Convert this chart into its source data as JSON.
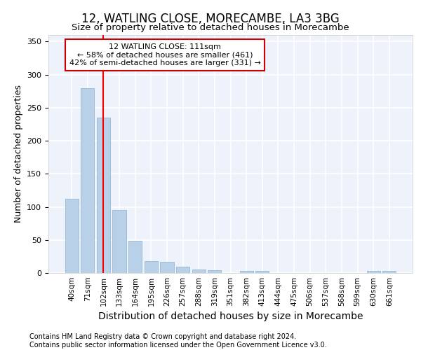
{
  "title": "12, WATLING CLOSE, MORECAMBE, LA3 3BG",
  "subtitle": "Size of property relative to detached houses in Morecambe",
  "xlabel": "Distribution of detached houses by size in Morecambe",
  "ylabel": "Number of detached properties",
  "categories": [
    "40sqm",
    "71sqm",
    "102sqm",
    "133sqm",
    "164sqm",
    "195sqm",
    "226sqm",
    "257sqm",
    "288sqm",
    "319sqm",
    "351sqm",
    "382sqm",
    "413sqm",
    "444sqm",
    "475sqm",
    "506sqm",
    "537sqm",
    "568sqm",
    "599sqm",
    "630sqm",
    "661sqm"
  ],
  "values": [
    112,
    280,
    235,
    95,
    49,
    18,
    17,
    10,
    5,
    4,
    0,
    3,
    3,
    0,
    0,
    0,
    0,
    0,
    0,
    3,
    3
  ],
  "bar_color": "#b8d0e8",
  "bar_edge_color": "#8ab0cc",
  "background_color": "#eef2fb",
  "grid_color": "#ffffff",
  "red_line_x": 2.0,
  "annotation_text_line1": "12 WATLING CLOSE: 111sqm",
  "annotation_text_line2": "← 58% of detached houses are smaller (461)",
  "annotation_text_line3": "42% of semi-detached houses are larger (331) →",
  "annotation_box_color": "#ffffff",
  "annotation_box_edge_color": "#cc0000",
  "ylim": [
    0,
    360
  ],
  "yticks": [
    0,
    50,
    100,
    150,
    200,
    250,
    300,
    350
  ],
  "footer_line1": "Contains HM Land Registry data © Crown copyright and database right 2024.",
  "footer_line2": "Contains public sector information licensed under the Open Government Licence v3.0.",
  "title_fontsize": 12,
  "subtitle_fontsize": 9.5,
  "ylabel_fontsize": 9,
  "xlabel_fontsize": 10,
  "tick_fontsize": 8,
  "footer_fontsize": 7
}
